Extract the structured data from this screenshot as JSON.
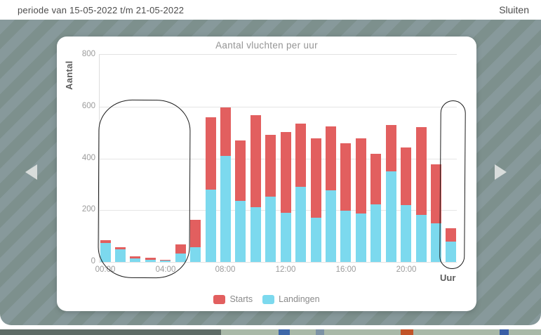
{
  "header": {
    "period": "periode van 15-05-2022 t/m 21-05-2022",
    "close": "Sluiten"
  },
  "pager": {
    "prev": "previous-period",
    "next": "next-period"
  },
  "chart_data": {
    "type": "bar",
    "stacked": true,
    "title": "Aantal vluchten per uur",
    "xlabel": "Uur",
    "ylabel": "Aantal",
    "ylim": [
      0,
      800
    ],
    "grid": true,
    "legend_position": "bottom",
    "ytick_labels": [
      "800",
      "600",
      "400",
      "200",
      "0"
    ],
    "xtick_labels": [
      "00:00",
      "04:00",
      "08:00",
      "12:00",
      "16:00",
      "20:00"
    ],
    "categories": [
      "00:00",
      "01:00",
      "02:00",
      "03:00",
      "04:00",
      "05:00",
      "06:00",
      "07:00",
      "08:00",
      "09:00",
      "10:00",
      "11:00",
      "12:00",
      "13:00",
      "14:00",
      "15:00",
      "16:00",
      "17:00",
      "18:00",
      "19:00",
      "20:00",
      "21:00",
      "22:00",
      "23:00"
    ],
    "series": [
      {
        "name": "Starts",
        "color": "#e25f5f",
        "values": [
          13,
          8,
          9,
          8,
          1,
          36,
          106,
          279,
          188,
          235,
          356,
          241,
          313,
          245,
          305,
          247,
          261,
          290,
          196,
          177,
          222,
          340,
          226,
          49
        ]
      },
      {
        "name": "Landingen",
        "color": "#7cd9ee",
        "values": [
          72,
          48,
          14,
          8,
          6,
          32,
          56,
          280,
          409,
          235,
          212,
          251,
          190,
          289,
          171,
          276,
          197,
          186,
          222,
          351,
          221,
          182,
          150,
          80
        ]
      }
    ],
    "annotations": [
      {
        "type": "hand-drawn-circle",
        "label": "circled bars 00:00 through 05:00"
      },
      {
        "type": "hand-drawn-circle",
        "label": "circled bar 23:00"
      }
    ]
  },
  "colors": {
    "overlay_stripe_light": "#87999b",
    "overlay_stripe_dark": "#7d908d",
    "card_background": "#ffffff",
    "arrow": "#d8dcdb",
    "annotation_stroke": "#1c1c1c",
    "starts_bar": "#e25f5f",
    "landingen_bar": "#7cd9ee"
  }
}
